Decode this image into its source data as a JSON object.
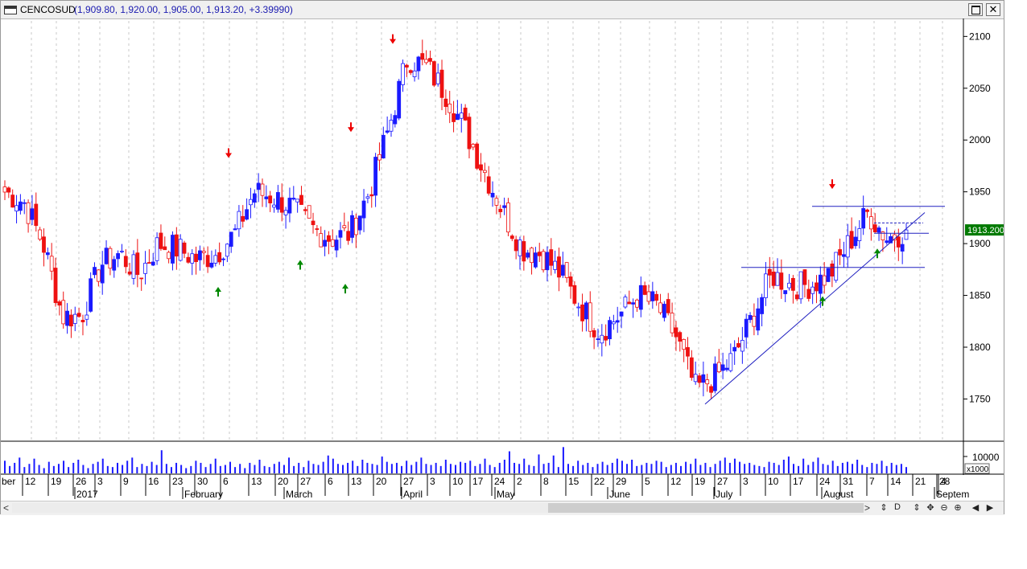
{
  "window": {
    "symbol": "CENCOSUD",
    "quote": "(1,909.80, 1,920.00, 1,905.00, 1,913.20, +3.39990)"
  },
  "colors": {
    "up": "#1a1aff",
    "down": "#ee1111",
    "neutral": "#ffffff",
    "line": "#2020c0",
    "arrow_up": "#008800",
    "arrow_down": "#ee0000",
    "vol": "#1a1aff",
    "price_tag": "#007a00"
  },
  "chart_data": {
    "type": "candlestick",
    "title": "",
    "ylim": [
      1710,
      2115
    ],
    "yticks": [
      1750,
      1800,
      1850,
      1900,
      1950,
      2000,
      2050,
      2100
    ],
    "last_price_label": "1913.200",
    "volume": {
      "ytick_label": "10000",
      "multiplier_label": "x1000",
      "values": [
        1.2,
        0.7,
        1.0,
        1.5,
        0.6,
        0.9,
        1.4,
        0.8,
        0.5,
        1.1,
        0.7,
        0.9,
        1.2,
        0.6,
        1.0,
        1.3,
        0.8,
        0.5,
        0.9,
        1.1,
        1.4,
        0.7,
        0.6,
        1.0,
        0.8,
        1.2,
        1.5,
        0.6,
        0.9,
        0.7,
        1.1,
        0.8,
        2.2,
        0.9,
        0.6,
        1.0,
        0.8,
        0.5,
        0.7,
        1.2,
        1.0,
        0.6,
        0.9,
        1.4,
        0.7,
        0.8,
        1.1,
        0.6,
        0.9,
        0.5,
        1.0,
        0.8,
        1.3,
        0.7,
        0.6,
        0.9,
        1.1,
        0.8,
        1.5,
        0.7,
        1.0,
        0.6,
        1.2,
        0.9,
        0.8,
        1.1,
        1.7,
        1.4,
        0.9,
        0.8,
        1.0,
        1.2,
        0.7,
        1.3,
        1.0,
        0.9,
        0.8,
        1.6,
        1.1,
        0.9,
        1.0,
        0.7,
        1.2,
        0.8,
        1.1,
        1.5,
        0.9,
        0.8,
        1.0,
        0.7,
        1.3,
        0.9,
        0.8,
        1.1,
        1.0,
        1.2,
        0.7,
        0.9,
        1.4,
        0.8,
        0.6,
        1.0,
        1.3,
        2.1,
        1.0,
        0.9,
        1.4,
        0.8,
        0.7,
        1.8,
        0.9,
        1.0,
        1.7,
        0.6,
        2.5,
        0.9,
        0.7,
        1.2,
        0.8,
        1.0,
        0.6,
        0.9,
        1.1,
        0.8,
        1.0,
        1.4,
        1.2,
        0.9,
        1.3,
        0.7,
        0.8,
        1.0,
        0.9,
        1.2,
        1.1,
        0.6,
        0.8,
        1.0,
        0.7,
        1.1,
        0.9,
        1.4,
        0.8,
        1.0,
        0.6,
        0.9,
        1.2,
        1.5,
        1.0,
        1.4,
        1.1,
        0.9,
        1.0,
        0.8,
        0.7,
        0.6,
        1.1,
        1.0,
        0.8,
        1.3,
        1.6,
        0.9,
        0.7,
        1.4,
        0.8,
        1.1,
        1.5,
        0.9,
        0.8,
        1.2,
        0.7,
        1.0,
        1.1,
        0.9,
        1.3,
        0.8,
        0.6,
        1.0,
        0.9,
        1.2,
        0.7,
        1.0,
        0.8,
        0.9,
        0.6
      ]
    },
    "x_tick_labels": [
      "ber",
      "12",
      "19",
      "26",
      "3",
      "9",
      "16",
      "23",
      "30",
      "6",
      "13",
      "20",
      "27",
      "6",
      "13",
      "20",
      "27",
      "3",
      "10",
      "17",
      "24",
      "2",
      "8",
      "15",
      "22",
      "29",
      "5",
      "12",
      "19",
      "27",
      "3",
      "10",
      "17",
      "24",
      "31",
      "7",
      "14",
      "21",
      "28",
      "4"
    ],
    "month_labels": [
      "2017",
      "February",
      "March",
      "April",
      "May",
      "June",
      "July",
      "August",
      "Septem"
    ],
    "candles_summary": "Daily candles from mid-Dec 2016 to late Aug 2017",
    "key_points": [
      {
        "date": "Dec 2016",
        "close": 1950
      },
      {
        "date": "late Dec 2016",
        "close": 1830
      },
      {
        "date": "Jan 2017",
        "close": 1890
      },
      {
        "date": "Feb 2017",
        "close": 1940
      },
      {
        "date": "Mar 2017",
        "close": 1905
      },
      {
        "date": "late Mar 2017",
        "close": 2080
      },
      {
        "date": "early Apr 2017",
        "close": 2075
      },
      {
        "date": "May 2017",
        "close": 1900
      },
      {
        "date": "mid May 2017",
        "close": 1840
      },
      {
        "date": "early Jun 2017",
        "close": 1850
      },
      {
        "date": "late Jun 2017",
        "close": 1750
      },
      {
        "date": "Jul 2017",
        "close": 1860
      },
      {
        "date": "early Aug 2017",
        "close": 1930
      },
      {
        "date": "Aug 2017",
        "close": 1913.2
      }
    ]
  },
  "toolbar": {
    "scroll_left": "<",
    "scroll_right": ">",
    "tools": [
      "⇕",
      "D",
      "⇕",
      "✥",
      "⊖",
      "⊕",
      "◀",
      "▶"
    ]
  }
}
